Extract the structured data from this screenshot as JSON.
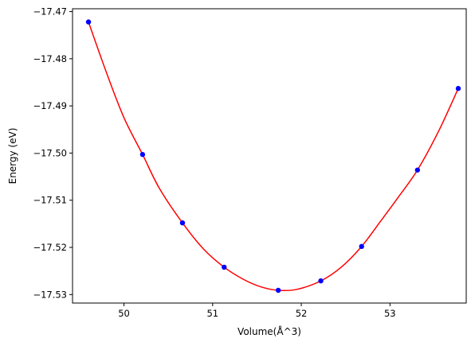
{
  "chart_data": {
    "type": "scatter",
    "title": "",
    "xlabel": "Volume(Å^3)",
    "ylabel": "Energy (eV)",
    "xlim": [
      49.42,
      53.86
    ],
    "ylim": [
      -17.5318,
      -17.4694
    ],
    "xticks": [
      50,
      51,
      52,
      53
    ],
    "xtick_labels": [
      "50",
      "51",
      "52",
      "53"
    ],
    "yticks": [
      -17.47,
      -17.48,
      -17.49,
      -17.5,
      -17.51,
      -17.52,
      -17.53
    ],
    "ytick_labels": [
      "−17.47",
      "−17.48",
      "−17.49",
      "−17.50",
      "−17.51",
      "−17.52",
      "−17.53"
    ],
    "grid": false,
    "series": [
      {
        "kind": "points",
        "color": "#0000ff",
        "x": [
          49.6,
          50.21,
          50.66,
          51.13,
          51.74,
          52.22,
          52.68,
          53.31,
          53.77
        ],
        "y": [
          -17.4722,
          -17.5003,
          -17.5148,
          -17.5242,
          -17.5291,
          -17.5271,
          -17.5198,
          -17.5036,
          -17.4863
        ]
      },
      {
        "kind": "fit-curve",
        "color": "#ff0000",
        "x": [
          49.6,
          49.8,
          50.0,
          50.21,
          50.4,
          50.66,
          50.9,
          51.13,
          51.35,
          51.55,
          51.74,
          51.95,
          52.22,
          52.45,
          52.68,
          52.9,
          53.1,
          53.31,
          53.55,
          53.77
        ],
        "y": [
          -17.4722,
          -17.4828,
          -17.4925,
          -17.5003,
          -17.5075,
          -17.5148,
          -17.5204,
          -17.5242,
          -17.5268,
          -17.5284,
          -17.5291,
          -17.5289,
          -17.5271,
          -17.5242,
          -17.5198,
          -17.5143,
          -17.5092,
          -17.5036,
          -17.4953,
          -17.4863
        ]
      }
    ]
  }
}
